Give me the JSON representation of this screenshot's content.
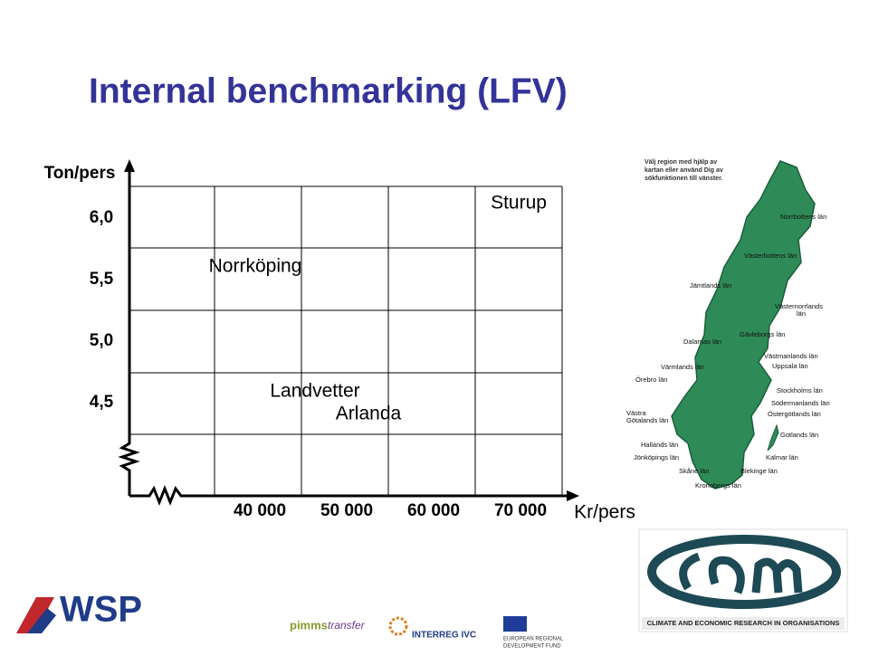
{
  "title": "Internal benchmarking (LFV)",
  "chart": {
    "y_label": "Ton/pers",
    "x_label": "Kr/pers",
    "y_ticks": [
      "6,0",
      "5,5",
      "5,0",
      "4,5"
    ],
    "x_ticks": [
      "40 000",
      "50 000",
      "60 000",
      "70 000"
    ],
    "points": [
      "Sturup",
      "Norrköping",
      "Landvetter",
      "Arlanda"
    ]
  },
  "map": {
    "instruction": [
      "Välj region med hjälp av",
      "kartan eller använd Dig av",
      "sökfunktionen till vänster."
    ],
    "regions": [
      [
        "Norrbottens län"
      ],
      [
        "Västerbottens län"
      ],
      [
        "Jämtlands län"
      ],
      [
        "Västernorrlands",
        "län"
      ],
      [
        "Gävleborgs län"
      ],
      [
        "Dalarnas län"
      ],
      [
        "Västmanlands län"
      ],
      [
        "Uppsala län"
      ],
      [
        "Värmlands län"
      ],
      [
        "Örebro län"
      ],
      [
        "Stockholms län"
      ],
      [
        "Södermanlands län"
      ],
      [
        "Östergötlands län"
      ],
      [
        "Västra",
        "Götalands län"
      ],
      [
        "Gotlands län"
      ],
      [
        "Hallands län"
      ],
      [
        "Jönköpings län"
      ],
      [
        "Kalmar län"
      ],
      [
        "Skåne län"
      ],
      [
        "Blekinge län"
      ],
      [
        "Kronobergs län"
      ]
    ]
  },
  "logos": {
    "wsp": "WSP",
    "pimms": [
      "pimms",
      "transfer"
    ],
    "interreg": "INTERREG IVC",
    "erdf": [
      "EUROPEAN REGIONAL",
      "DEVELOPMENT FUND"
    ],
    "cem": "CLIMATE AND ECONOMIC RESEARCH IN ORGANISATIONS"
  }
}
